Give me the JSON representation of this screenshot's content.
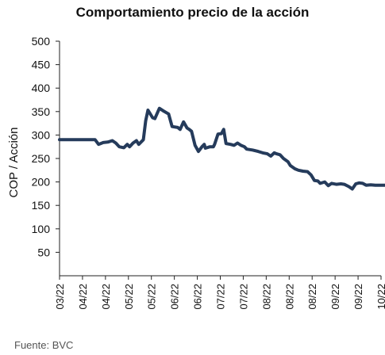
{
  "chart_data": {
    "type": "line",
    "title": "Comportamiento precio de la acción",
    "ylabel": "COP / Acción",
    "xlabel": "",
    "ylim": [
      0,
      500
    ],
    "y_ticks": [
      50,
      100,
      150,
      200,
      250,
      300,
      350,
      400,
      450,
      500
    ],
    "x_tick_labels": [
      "03/22",
      "04/22",
      "04/22",
      "05/22",
      "05/22",
      "06/22",
      "06/22",
      "07/22",
      "07/22",
      "08/22",
      "08/22",
      "08/22",
      "09/22",
      "09/22",
      "10/22"
    ],
    "grid": false,
    "legend": "none",
    "series": [
      {
        "color": "#253b5b",
        "x": [
          0,
          0.5,
          1.2,
          1.55,
          1.7,
          1.9,
          2.1,
          2.3,
          2.45,
          2.6,
          2.8,
          2.95,
          3.05,
          3.2,
          3.35,
          3.45,
          3.65,
          3.75,
          3.85,
          4.05,
          4.15,
          4.35,
          4.5,
          4.75,
          4.9,
          5.15,
          5.25,
          5.4,
          5.55,
          5.65,
          5.75,
          5.9,
          6.05,
          6.2,
          6.3,
          6.35,
          6.55,
          6.7,
          6.75,
          6.9,
          7.05,
          7.15,
          7.25,
          7.45,
          7.6,
          7.75,
          7.9,
          8.05,
          8.15,
          8.4,
          8.65,
          8.85,
          9.05,
          9.2,
          9.35,
          9.45,
          9.6,
          9.75,
          9.95,
          10.05,
          10.25,
          10.4,
          10.6,
          10.8,
          10.95,
          11.1,
          11.25,
          11.35,
          11.55,
          11.7,
          11.85,
          12.05,
          12.25,
          12.4,
          12.6,
          12.75,
          12.9,
          13.05,
          13.2,
          13.35,
          13.55,
          13.75,
          13.95,
          14.15,
          14.3
        ],
        "y": [
          290,
          290,
          290,
          290,
          280,
          284,
          285,
          288,
          283,
          275,
          273,
          280,
          275,
          283,
          288,
          280,
          290,
          330,
          353,
          337,
          335,
          357,
          352,
          345,
          318,
          316,
          312,
          328,
          315,
          312,
          308,
          278,
          265,
          275,
          280,
          272,
          275,
          275,
          280,
          302,
          303,
          312,
          282,
          280,
          278,
          283,
          278,
          275,
          270,
          268,
          265,
          262,
          260,
          255,
          262,
          260,
          258,
          250,
          243,
          235,
          228,
          225,
          223,
          222,
          215,
          203,
          202,
          197,
          200,
          192,
          197,
          195,
          196,
          195,
          190,
          185,
          196,
          198,
          197,
          193,
          194,
          193,
          193,
          193,
          193
        ]
      }
    ]
  },
  "source_note": "Fuente: BVC"
}
